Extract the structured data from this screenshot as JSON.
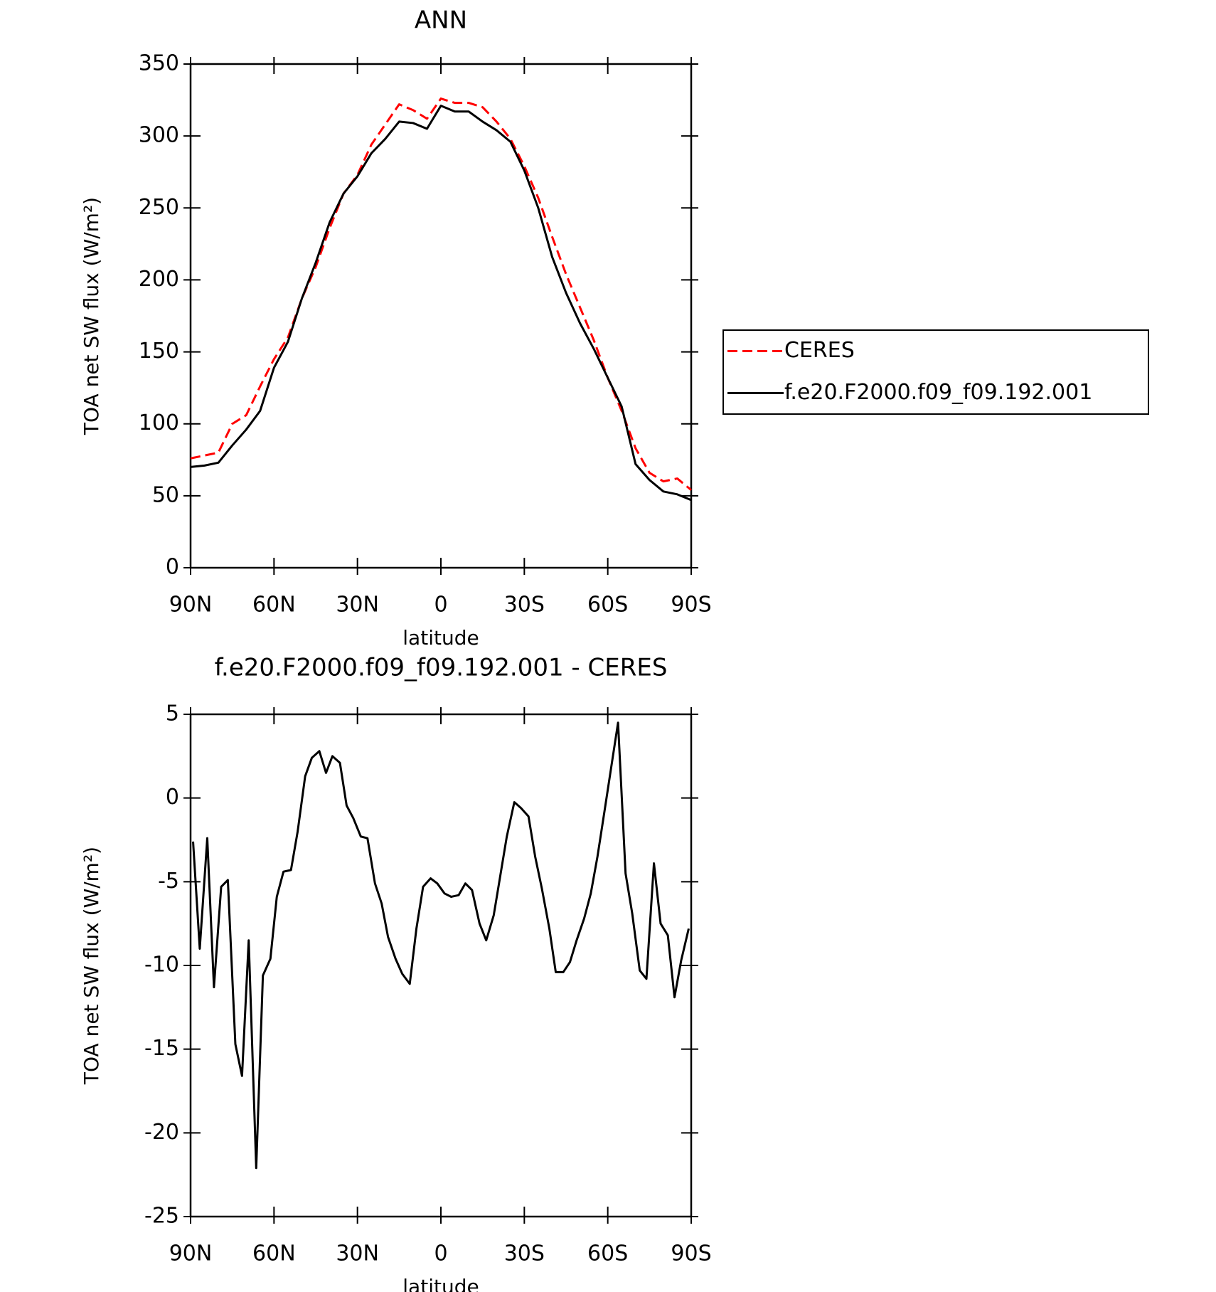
{
  "chart_data": [
    {
      "type": "line",
      "title": "ANN",
      "xlabel": "latitude",
      "ylabel": "TOA net SW flux (W/m²)",
      "x": [
        90,
        85,
        80,
        75,
        70,
        65,
        60,
        55,
        50,
        45,
        40,
        35,
        30,
        25,
        20,
        15,
        10,
        5,
        0,
        -5,
        -10,
        -15,
        -20,
        -25,
        -30,
        -35,
        -40,
        -45,
        -50,
        -55,
        -60,
        -65,
        -70,
        -75,
        -80,
        -85,
        -90
      ],
      "series": [
        {
          "name": "CERES",
          "color": "#ff0000",
          "linestyle": "dashed",
          "values": [
            76,
            78,
            80,
            100,
            106,
            126,
            145,
            160,
            187,
            209,
            236,
            260,
            273,
            294,
            308,
            322,
            318,
            312,
            326,
            323,
            323,
            320,
            310,
            298,
            279,
            257,
            230,
            204,
            181,
            158,
            132,
            109,
            83,
            66,
            60,
            62,
            54
          ]
        },
        {
          "name": "f.e20.F2000.f09_f09.192.001",
          "color": "#000000",
          "linestyle": "solid",
          "values": [
            70,
            71,
            73,
            85,
            96,
            109,
            139,
            157,
            187,
            212,
            240,
            260,
            272,
            288,
            298,
            310,
            309,
            305,
            321,
            317,
            317,
            310,
            304,
            296,
            276,
            250,
            216,
            191,
            170,
            152,
            132,
            112,
            72,
            61,
            53,
            51,
            47
          ]
        }
      ],
      "xlim": [
        90,
        -90
      ],
      "xticks": [
        {
          "value": 90,
          "label": "90N"
        },
        {
          "value": 60,
          "label": "60N"
        },
        {
          "value": 30,
          "label": "30N"
        },
        0,
        {
          "value": -30,
          "label": "30S"
        },
        {
          "value": -60,
          "label": "60S"
        },
        {
          "value": -90,
          "label": "90S"
        }
      ],
      "ylim": [
        0,
        350
      ],
      "yticks": [
        0,
        50,
        100,
        150,
        200,
        250,
        300,
        350
      ],
      "legend": "right"
    },
    {
      "type": "line",
      "title": "f.e20.F2000.f09_f09.192.001 - CERES",
      "xlabel": "latitude",
      "ylabel": "TOA net SW flux (W/m²)",
      "x": [
        89.1,
        86.7,
        84.0,
        81.6,
        79.0,
        76.6,
        73.9,
        71.5,
        69.1,
        66.4,
        64.0,
        61.3,
        59.0,
        56.6,
        53.9,
        51.5,
        48.8,
        46.4,
        43.7,
        41.3,
        39.0,
        36.3,
        33.9,
        31.5,
        28.8,
        26.4,
        23.7,
        21.3,
        19.0,
        16.3,
        13.9,
        11.2,
        8.8,
        6.4,
        3.7,
        1.3,
        -1.3,
        -3.7,
        -6.4,
        -8.8,
        -11.2,
        -13.9,
        -16.3,
        -19.0,
        -21.3,
        -23.7,
        -26.4,
        -28.8,
        -31.5,
        -33.9,
        -36.3,
        -39.0,
        -41.3,
        -44.0,
        -46.4,
        -48.8,
        -51.5,
        -53.9,
        -56.3,
        -59.0,
        -61.3,
        -63.7,
        -66.4,
        -68.8,
        -71.5,
        -73.9,
        -76.6,
        -79.0,
        -81.6,
        -84.0,
        -86.4,
        -89.1
      ],
      "values": [
        -2.6,
        -9.0,
        -2.4,
        -11.3,
        -5.3,
        -4.9,
        -14.7,
        -16.6,
        -8.5,
        -22.1,
        -10.6,
        -9.6,
        -5.9,
        -4.4,
        -4.3,
        -2.0,
        1.3,
        2.4,
        2.8,
        1.5,
        2.5,
        2.1,
        -0.45,
        -1.2,
        -2.3,
        -2.4,
        -5.1,
        -6.3,
        -8.3,
        -9.6,
        -10.5,
        -11.1,
        -7.8,
        -5.3,
        -4.8,
        -5.1,
        -5.7,
        -5.9,
        -5.8,
        -5.1,
        -5.5,
        -7.5,
        -8.5,
        -7.0,
        -4.7,
        -2.3,
        -0.25,
        -0.6,
        -1.1,
        -3.5,
        -5.4,
        -7.8,
        -10.4,
        -10.4,
        -9.8,
        -8.5,
        -7.2,
        -5.7,
        -3.5,
        -0.6,
        1.9,
        4.5,
        -4.5,
        -6.9,
        -10.3,
        -10.8,
        -3.9,
        -7.5,
        -8.2,
        -11.9,
        -9.7,
        -7.8
      ],
      "color": "#000000",
      "xlim": [
        90,
        -90
      ],
      "xticks": [
        {
          "value": 90,
          "label": "90N"
        },
        {
          "value": 60,
          "label": "60N"
        },
        {
          "value": 30,
          "label": "30N"
        },
        0,
        {
          "value": -30,
          "label": "30S"
        },
        {
          "value": -60,
          "label": "60S"
        },
        {
          "value": -90,
          "label": "90S"
        }
      ],
      "ylim": [
        -25,
        5
      ],
      "yticks": [
        -25,
        -20,
        -15,
        -10,
        -5,
        0,
        5
      ]
    }
  ]
}
